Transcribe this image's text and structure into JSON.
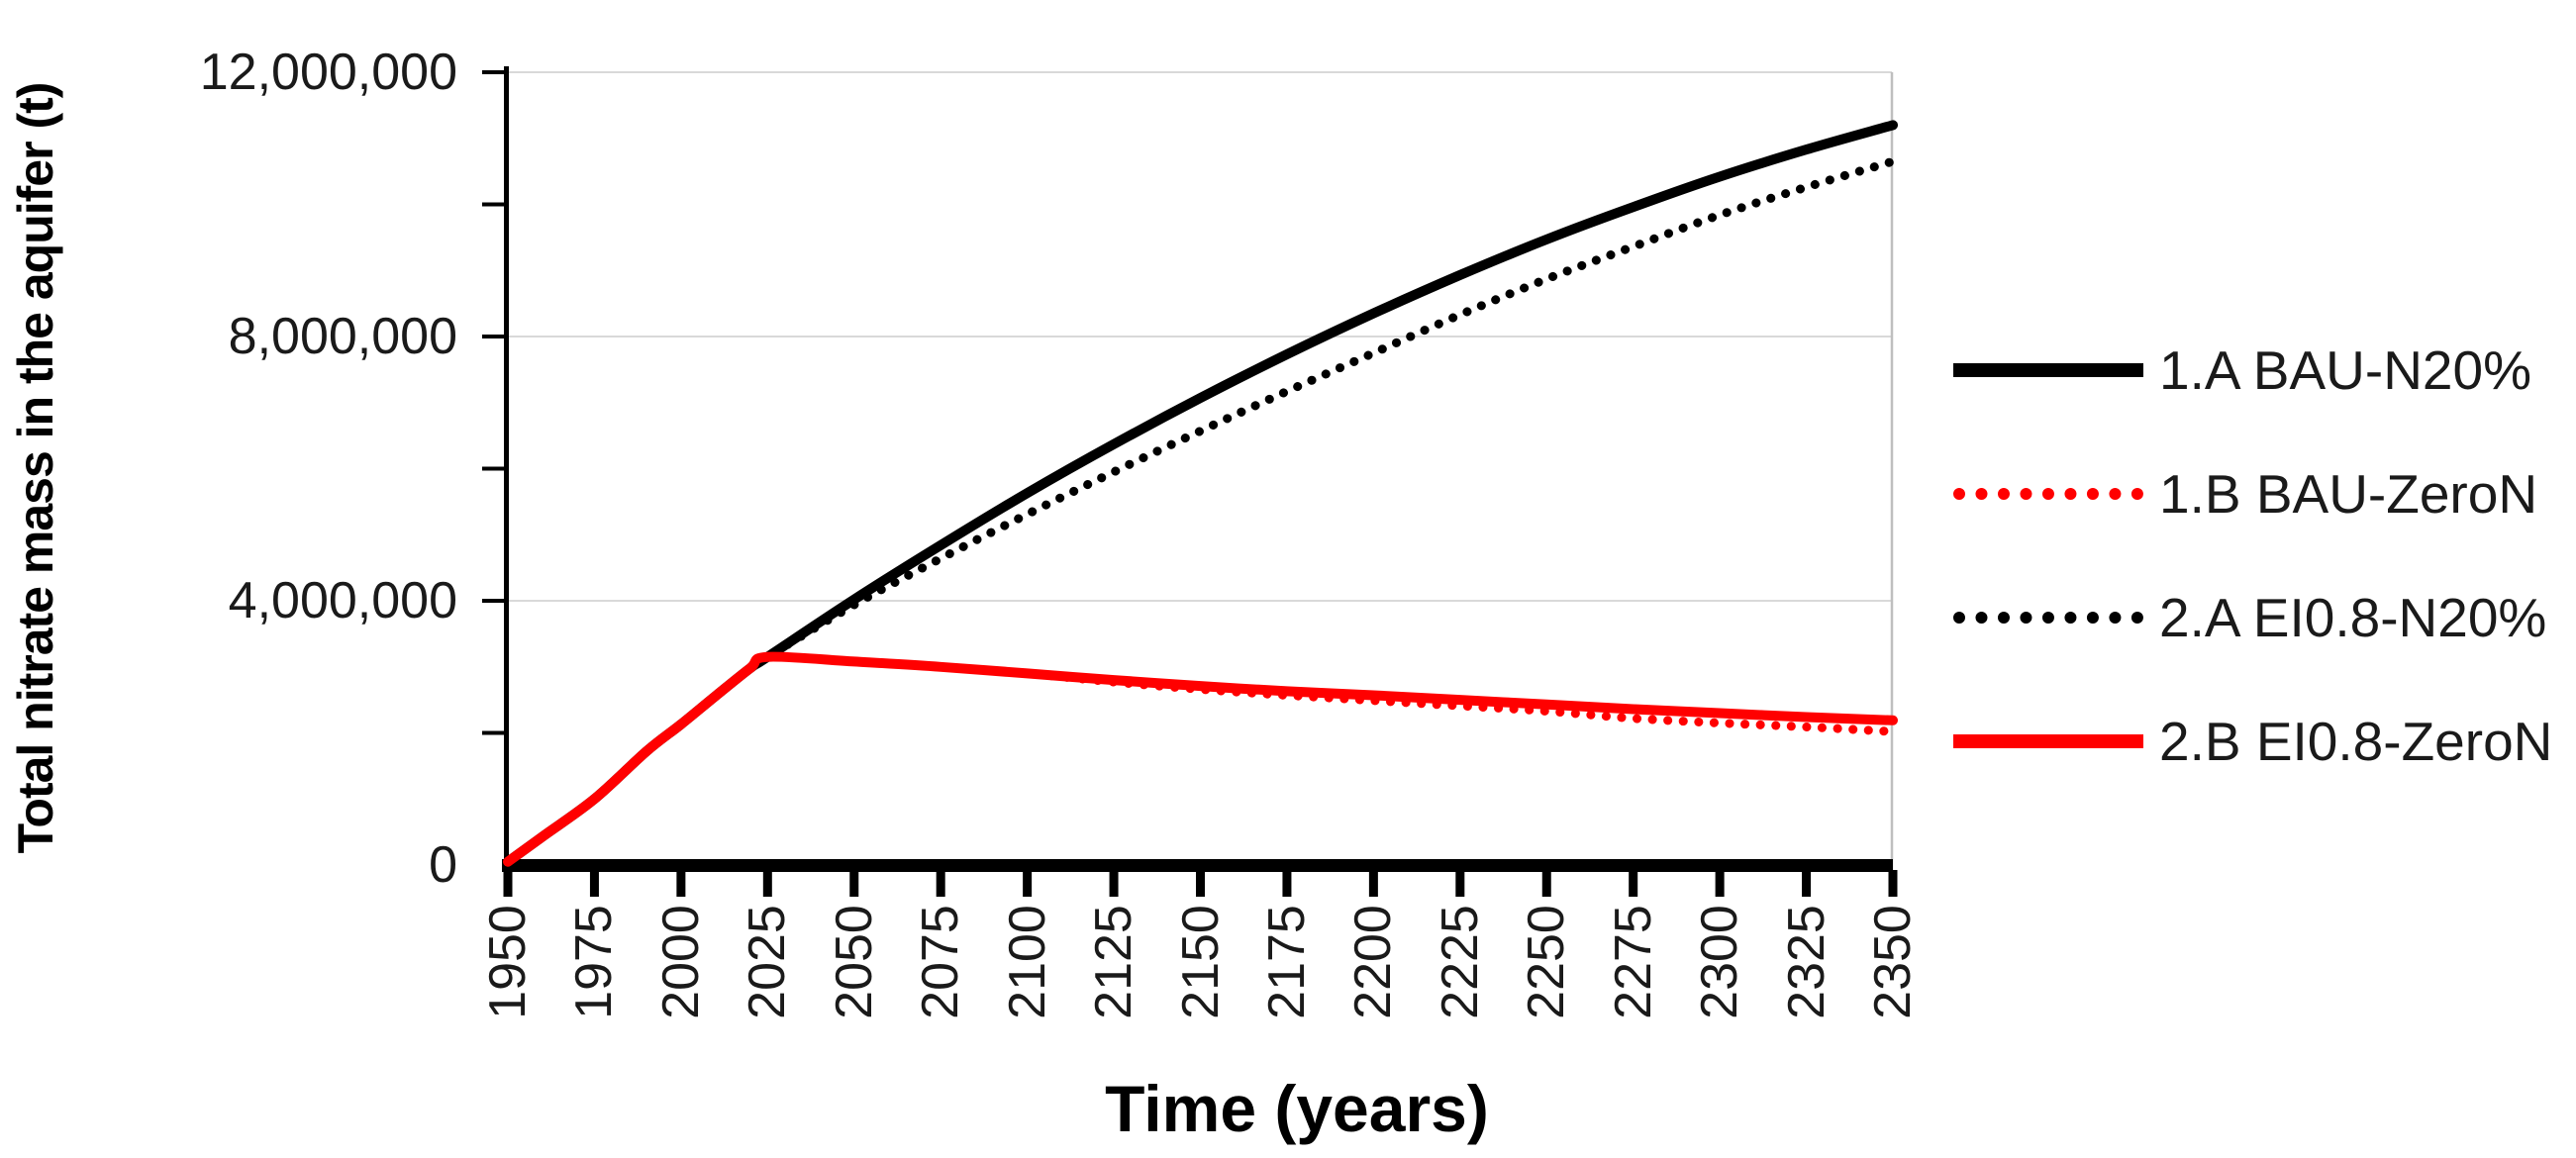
{
  "chart_data": {
    "type": "line",
    "title": "",
    "xlabel": "Time (years)",
    "ylabel": "Total nitrate mass in the aquifer (t)",
    "xlim": [
      1950,
      2350
    ],
    "ylim": [
      0,
      12000000
    ],
    "x_tick_years": [
      1950,
      1975,
      2000,
      2025,
      2050,
      2075,
      2100,
      2125,
      2150,
      2175,
      2200,
      2225,
      2250,
      2275,
      2300,
      2325,
      2350
    ],
    "y_ticks": [
      {
        "value": 0,
        "label": "0"
      },
      {
        "value": 4000000,
        "label": "4,000,000"
      },
      {
        "value": 8000000,
        "label": "8,000,000"
      },
      {
        "value": 12000000,
        "label": "12,000,000"
      }
    ],
    "y_minor_tick_values": [
      2000000,
      4000000,
      6000000,
      8000000,
      10000000,
      12000000
    ],
    "gridline_values": [
      4000000,
      8000000,
      12000000
    ],
    "grid_color": "#d9d9d9",
    "plot_border_color": "#bfbfbf",
    "axis_color": "#000000",
    "legend_position": "right",
    "series": [
      {
        "name": "1.A BAU-N20%",
        "color": "#000000",
        "style": "solid",
        "points": [
          [
            1950,
            50000
          ],
          [
            1960,
            430000
          ],
          [
            1975,
            1000000
          ],
          [
            1990,
            1720000
          ],
          [
            2000,
            2130000
          ],
          [
            2010,
            2560000
          ],
          [
            2020,
            2980000
          ],
          [
            2025,
            3150000
          ],
          [
            2050,
            4020000
          ],
          [
            2075,
            4840000
          ],
          [
            2100,
            5630000
          ],
          [
            2125,
            6370000
          ],
          [
            2150,
            7070000
          ],
          [
            2175,
            7730000
          ],
          [
            2200,
            8350000
          ],
          [
            2225,
            8930000
          ],
          [
            2250,
            9470000
          ],
          [
            2275,
            9960000
          ],
          [
            2300,
            10420000
          ],
          [
            2325,
            10830000
          ],
          [
            2350,
            11200000
          ]
        ]
      },
      {
        "name": "1.B BAU-ZeroN",
        "color": "#ff0000",
        "style": "dotted",
        "points": [
          [
            1950,
            50000
          ],
          [
            1960,
            430000
          ],
          [
            1975,
            1000000
          ],
          [
            1990,
            1720000
          ],
          [
            2000,
            2130000
          ],
          [
            2010,
            2560000
          ],
          [
            2020,
            2980000
          ],
          [
            2025,
            3150000
          ],
          [
            2050,
            3080000
          ],
          [
            2075,
            3000000
          ],
          [
            2100,
            2900000
          ],
          [
            2125,
            2770000
          ],
          [
            2150,
            2660000
          ],
          [
            2175,
            2570000
          ],
          [
            2200,
            2490000
          ],
          [
            2225,
            2410000
          ],
          [
            2250,
            2330000
          ],
          [
            2275,
            2220000
          ],
          [
            2300,
            2150000
          ],
          [
            2325,
            2090000
          ],
          [
            2350,
            2020000
          ]
        ]
      },
      {
        "name": "2.A EI0.8-N20%",
        "color": "#000000",
        "style": "dotted",
        "points": [
          [
            1950,
            50000
          ],
          [
            1960,
            430000
          ],
          [
            1975,
            1000000
          ],
          [
            1990,
            1720000
          ],
          [
            2000,
            2130000
          ],
          [
            2010,
            2560000
          ],
          [
            2020,
            2980000
          ],
          [
            2025,
            3150000
          ],
          [
            2050,
            3940000
          ],
          [
            2075,
            4640000
          ],
          [
            2100,
            5310000
          ],
          [
            2125,
            5950000
          ],
          [
            2150,
            6570000
          ],
          [
            2175,
            7170000
          ],
          [
            2200,
            7750000
          ],
          [
            2225,
            8330000
          ],
          [
            2250,
            8870000
          ],
          [
            2275,
            9360000
          ],
          [
            2300,
            9840000
          ],
          [
            2325,
            10260000
          ],
          [
            2350,
            10650000
          ]
        ]
      },
      {
        "name": "2.B EI0.8-ZeroN",
        "color": "#ff0000",
        "style": "solid",
        "points": [
          [
            1950,
            50000
          ],
          [
            1960,
            430000
          ],
          [
            1975,
            1000000
          ],
          [
            1990,
            1720000
          ],
          [
            2000,
            2130000
          ],
          [
            2010,
            2560000
          ],
          [
            2020,
            2980000
          ],
          [
            2025,
            3150000
          ],
          [
            2050,
            3080000
          ],
          [
            2075,
            3000000
          ],
          [
            2100,
            2900000
          ],
          [
            2125,
            2800000
          ],
          [
            2150,
            2710000
          ],
          [
            2175,
            2630000
          ],
          [
            2200,
            2570000
          ],
          [
            2225,
            2500000
          ],
          [
            2250,
            2430000
          ],
          [
            2275,
            2360000
          ],
          [
            2300,
            2300000
          ],
          [
            2325,
            2240000
          ],
          [
            2350,
            2190000
          ]
        ]
      }
    ]
  }
}
